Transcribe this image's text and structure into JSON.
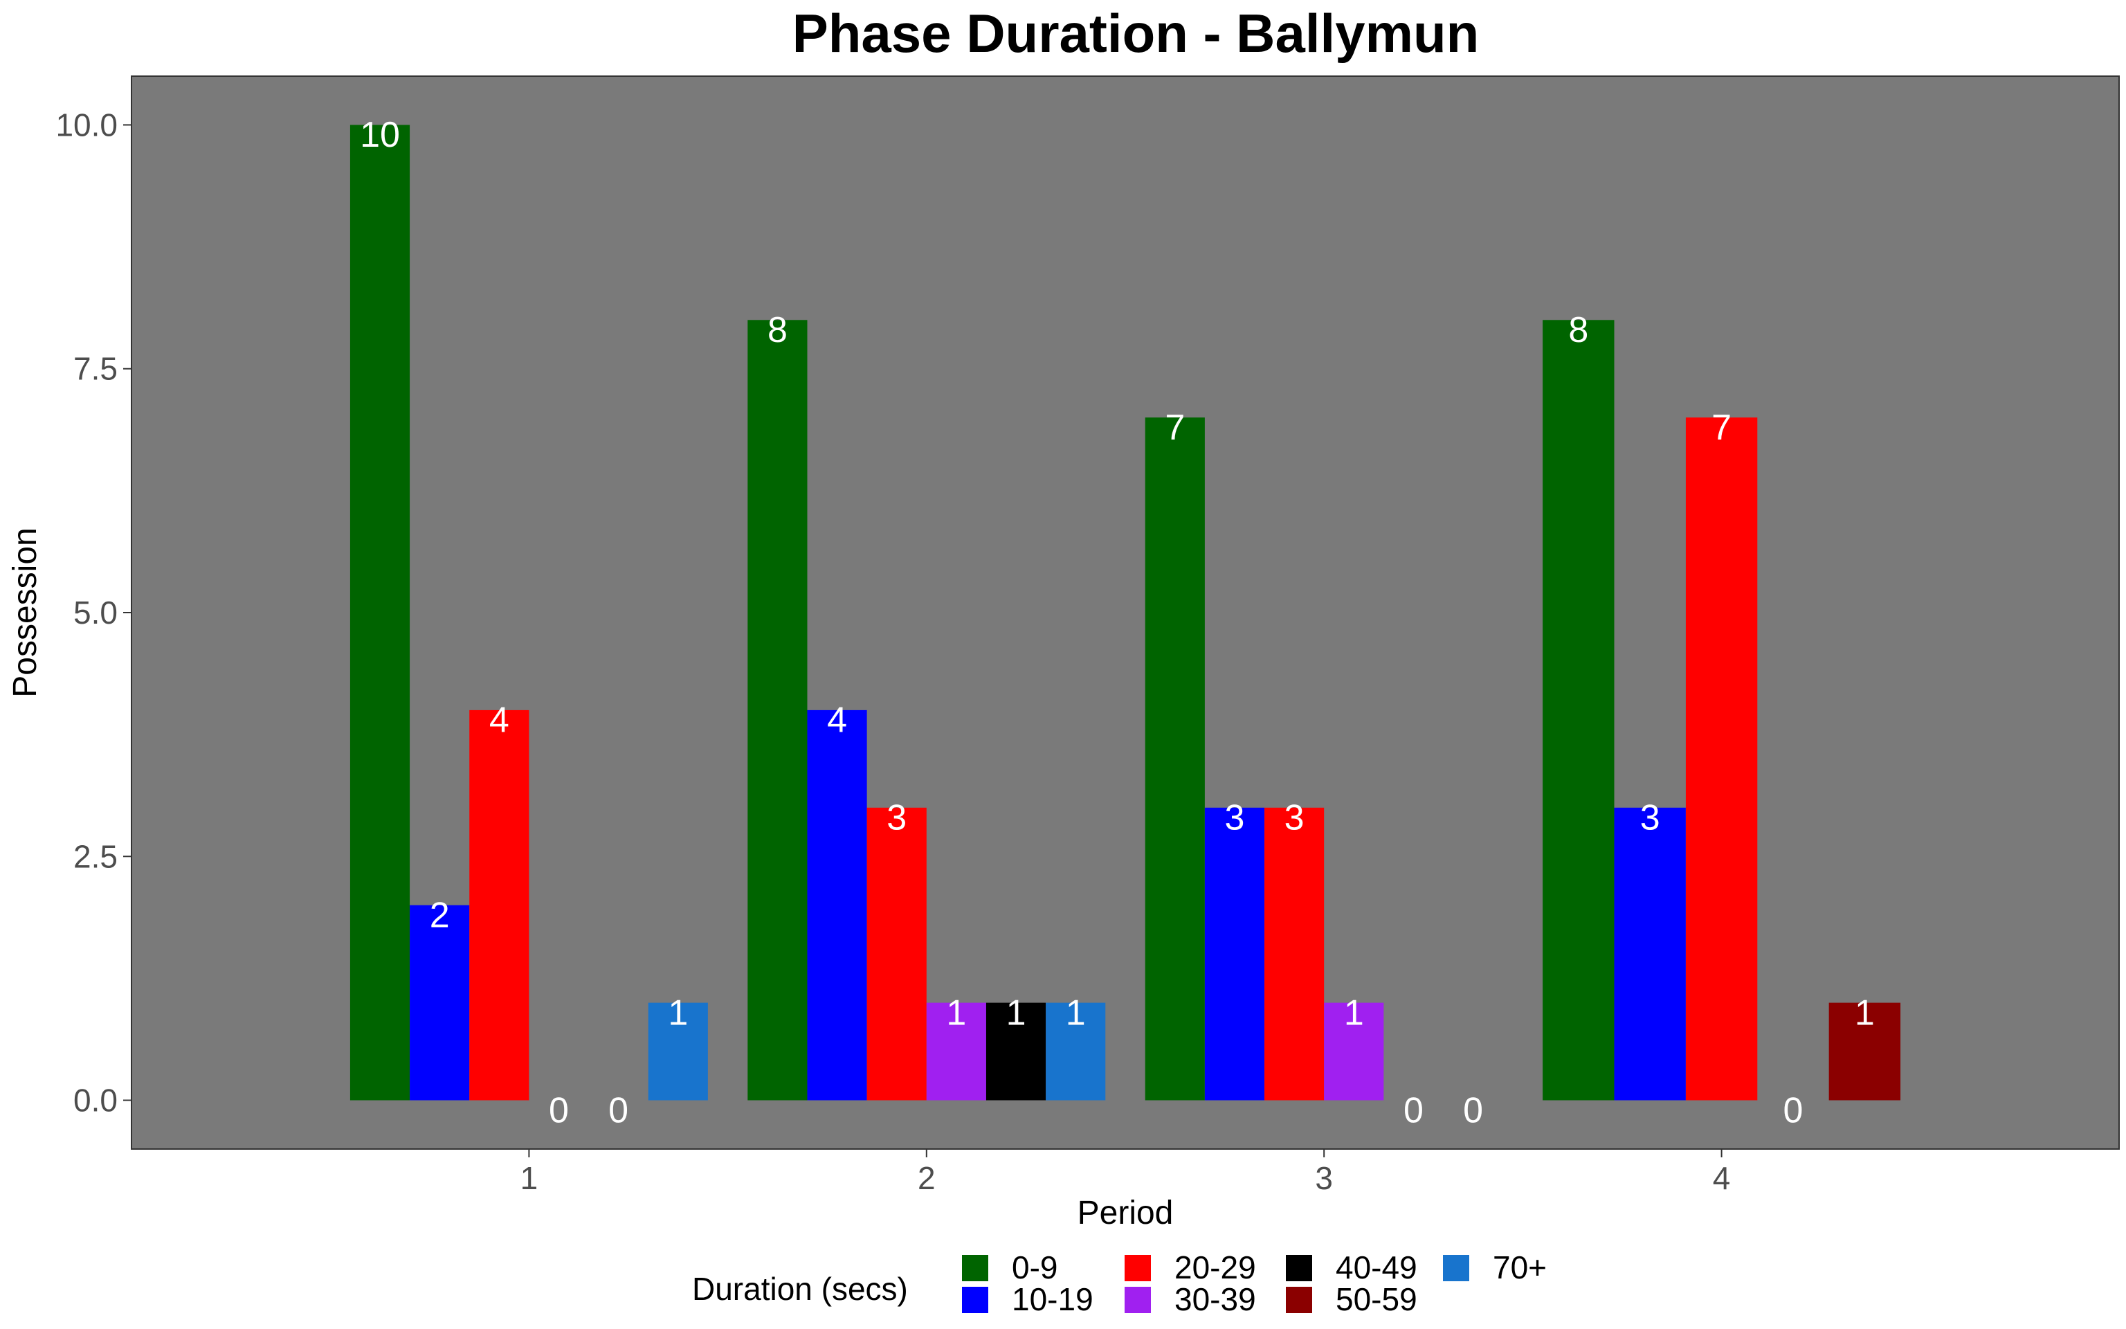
{
  "chart_data": {
    "type": "bar",
    "title": "Phase Duration - Ballymun",
    "xlabel": "Period",
    "ylabel": "Possession",
    "categories": [
      "1",
      "2",
      "3",
      "4"
    ],
    "ylim": [
      -0.5,
      10.5
    ],
    "yticks": [
      "0.0",
      "2.5",
      "5.0",
      "7.5",
      "10.0"
    ],
    "ytick_values": [
      0,
      2.5,
      5,
      7.5,
      10
    ],
    "grid": false,
    "legend_position": "bottom",
    "legend_title": "Duration (secs)",
    "groups": [
      {
        "period": "1",
        "bars": [
          {
            "duration": "0-9",
            "value": 10,
            "label": "10"
          },
          {
            "duration": "10-19",
            "value": 2,
            "label": "2"
          },
          {
            "duration": "20-29",
            "value": 4,
            "label": "4"
          },
          {
            "duration": "30-39",
            "value": 0,
            "label": "0"
          },
          {
            "duration": "40-49",
            "value": 0,
            "label": "0"
          },
          {
            "duration": "70+",
            "value": 1,
            "label": "1"
          }
        ]
      },
      {
        "period": "2",
        "bars": [
          {
            "duration": "0-9",
            "value": 8,
            "label": "8"
          },
          {
            "duration": "10-19",
            "value": 4,
            "label": "4"
          },
          {
            "duration": "20-29",
            "value": 3,
            "label": "3"
          },
          {
            "duration": "30-39",
            "value": 1,
            "label": "1"
          },
          {
            "duration": "40-49",
            "value": 1,
            "label": "1"
          },
          {
            "duration": "70+",
            "value": 1,
            "label": "1"
          }
        ]
      },
      {
        "period": "3",
        "bars": [
          {
            "duration": "0-9",
            "value": 7,
            "label": "7"
          },
          {
            "duration": "10-19",
            "value": 3,
            "label": "3"
          },
          {
            "duration": "20-29",
            "value": 3,
            "label": "3"
          },
          {
            "duration": "30-39",
            "value": 1,
            "label": "1"
          },
          {
            "duration": "40-49",
            "value": 0,
            "label": "0"
          },
          {
            "duration": "70+",
            "value": 0,
            "label": "0"
          }
        ]
      },
      {
        "period": "4",
        "bars": [
          {
            "duration": "0-9",
            "value": 8,
            "label": "8"
          },
          {
            "duration": "10-19",
            "value": 3,
            "label": "3"
          },
          {
            "duration": "20-29",
            "value": 7,
            "label": "7"
          },
          {
            "duration": "30-39",
            "value": 0,
            "label": "0"
          },
          {
            "duration": "50-59",
            "value": 1,
            "label": "1"
          }
        ]
      }
    ],
    "legend": [
      {
        "label": "0-9",
        "color": "#006400"
      },
      {
        "label": "10-19",
        "color": "#0000ff"
      },
      {
        "label": "20-29",
        "color": "#ff0000"
      },
      {
        "label": "30-39",
        "color": "#a020f0"
      },
      {
        "label": "40-49",
        "color": "#000000"
      },
      {
        "label": "50-59",
        "color": "#8b0000"
      },
      {
        "label": "70+",
        "color": "#1874cd"
      }
    ],
    "panel_color": "#7a7a7a"
  }
}
